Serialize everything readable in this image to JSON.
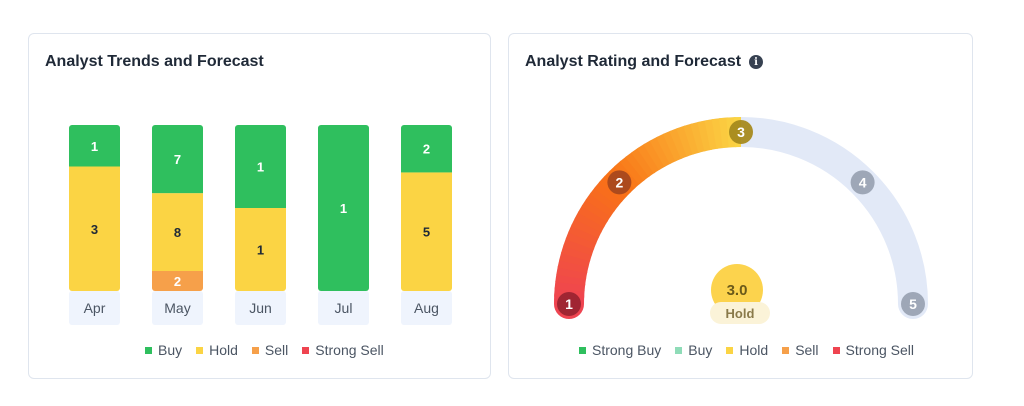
{
  "trends_card": {
    "title": "Analyst Trends and Forecast"
  },
  "rating_card": {
    "title": "Analyst Rating and Forecast",
    "info_icon": "info-icon"
  },
  "colors": {
    "buy": "#2fbf5e",
    "hold": "#fbd444",
    "sell": "#f6a04a",
    "strong_sell": "#ef4450",
    "strong_buy": "#2fbf5e",
    "buy_light": "#8fdcb8",
    "track": "#e2e9f7"
  },
  "chart_data": [
    {
      "type": "bar",
      "stacked": true,
      "categories": [
        "Apr",
        "May",
        "Jun",
        "Jul",
        "Aug"
      ],
      "series": [
        {
          "name": "Buy",
          "values": [
            1,
            7,
            1,
            1,
            2
          ]
        },
        {
          "name": "Hold",
          "values": [
            3,
            8,
            1,
            0,
            5
          ]
        },
        {
          "name": "Sell",
          "values": [
            0,
            2,
            0,
            0,
            0
          ]
        },
        {
          "name": "Strong Sell",
          "values": [
            0,
            0,
            0,
            0,
            0
          ]
        }
      ],
      "legend": [
        "Buy",
        "Hold",
        "Sell",
        "Strong Sell"
      ],
      "legend_position": "bottom"
    },
    {
      "type": "gauge",
      "scale_labels": [
        "1",
        "2",
        "3",
        "4",
        "5"
      ],
      "min": 1,
      "max": 5,
      "value": 3.0,
      "value_label": "3.0",
      "rating_label": "Hold",
      "legend": [
        "Strong Buy",
        "Buy",
        "Hold",
        "Sell",
        "Strong Sell"
      ],
      "legend_position": "bottom"
    }
  ]
}
